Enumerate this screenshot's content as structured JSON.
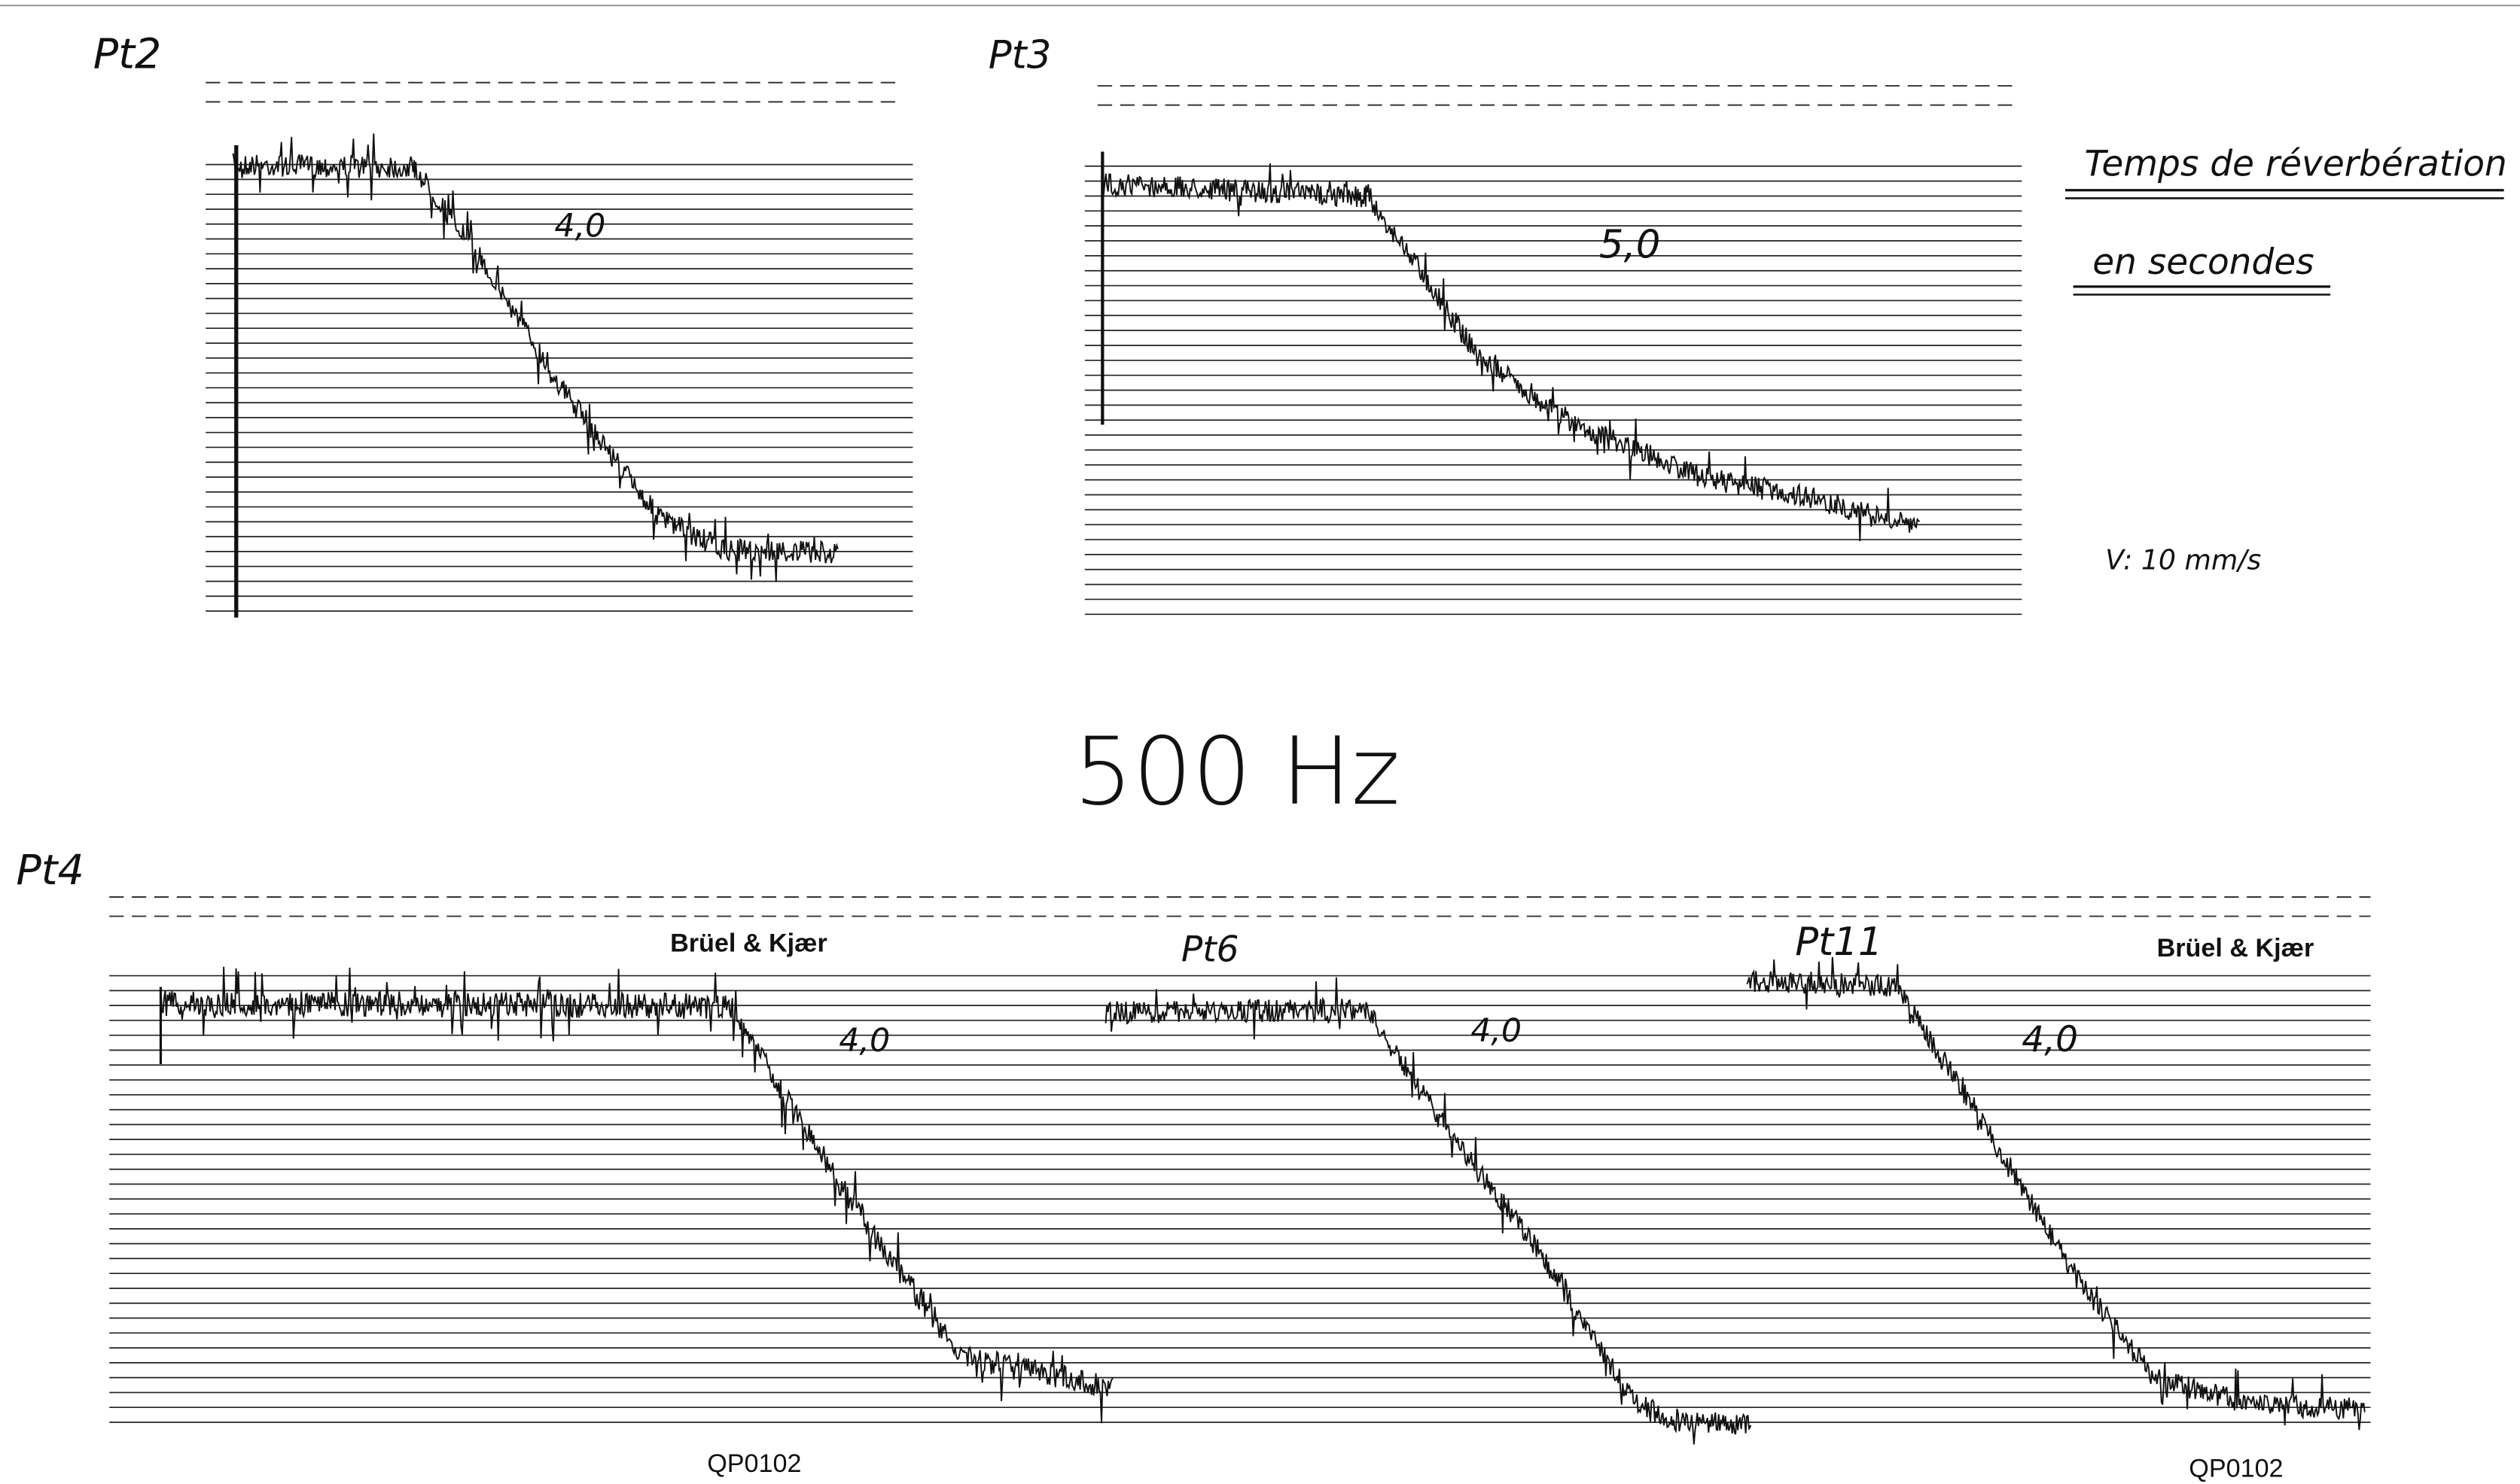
{
  "header": {
    "frequency": "500 Hz",
    "legend": {
      "title": "Temps de réverbération",
      "subtitle": "en secondes",
      "speed": "V: 10 mm/s"
    }
  },
  "panels": [
    {
      "label": "Pt2",
      "reverberation_time": "4,0"
    },
    {
      "label": "Pt3",
      "reverberation_time": "5,0"
    },
    {
      "label": "Pt4",
      "reverberation_time": "4,0"
    },
    {
      "label": "Pt6",
      "reverberation_time": "4,0"
    },
    {
      "label": "Pt11",
      "reverberation_time": "4,0"
    }
  ],
  "footer": {
    "brand": [
      "Brüel & Kjær",
      "Brüel & Kjær"
    ],
    "code": [
      "QP0102",
      "QP0102"
    ]
  }
}
